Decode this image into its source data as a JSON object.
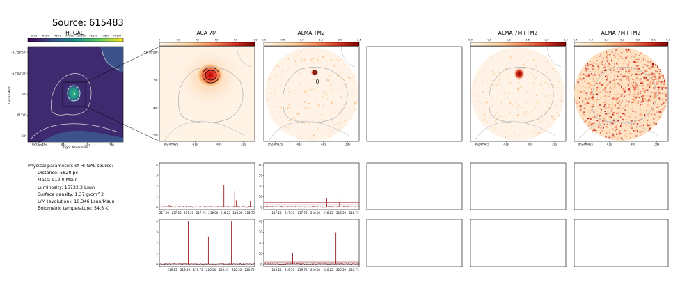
{
  "figure": {
    "title": "Source: 615483"
  },
  "colors": {
    "higal_low": "#440154",
    "higal_mid": "#31688e",
    "higal_high": "#35b779",
    "higal_top": "#fde725",
    "heat_low": "#fff5eb",
    "heat_mid": "#fd8d3c",
    "heat_high": "#7f0000",
    "spectrum_line": "#8b0000",
    "spectrum_base": "#000000",
    "contour": "#a6a6a6"
  },
  "params": {
    "heading": "Physical parameters of Hi-GAL source:",
    "lines": [
      "Distance: 5828 pc",
      "Mass: 912.0 Msun",
      "Luminosity: 16732.3 Lsun",
      "Surface density: 1.37 g/cm^2",
      "L/M (evolution): 18.346 Lsun/Msun",
      "Bolometric temperature: 54.5 K"
    ]
  },
  "chart_data": [
    {
      "type": "heatmap",
      "id": "higal",
      "title": "Hi-GAL",
      "xlabel": "Right Ascension",
      "ylabel": "Declination",
      "colorbar_ticks": [
        "2500",
        "5000",
        "7500",
        "10000",
        "12500",
        "15000",
        "17500",
        "20000"
      ],
      "x_ticks": [
        "9h24m48s",
        "44s",
        "40s",
        "36s"
      ],
      "y_ticks": [
        "-51°59'30\"",
        "-52°00'00\"",
        "30\"",
        "01'00\"",
        "30\""
      ],
      "colormap": "viridis"
    },
    {
      "type": "heatmap",
      "id": "aca7m",
      "title": "ACA 7M",
      "colorbar_ticks": [
        "0",
        "20",
        "40",
        "60",
        "80",
        "100"
      ],
      "x_ticks": [
        "9h24m42s",
        "41s",
        "40s",
        "39s"
      ],
      "y_ticks": [
        "-52°00'20\"",
        "30\"",
        "40\"",
        "50\""
      ],
      "colormap": "OrRd"
    },
    {
      "type": "heatmap",
      "id": "almatm2",
      "title": "ALMA TM2",
      "colorbar_ticks": [
        "0.0",
        "0.5",
        "1.0",
        "1.5",
        "2.0",
        "2.5"
      ],
      "x_ticks": [
        "9h24m42s",
        "41s",
        "40s",
        "39s"
      ],
      "colormap": "OrRd"
    },
    {
      "type": "heatmap",
      "id": "alma7mtm2",
      "title": "ALMA 7M+TM2",
      "colorbar_ticks": [
        "0.0",
        "0.5",
        "1.0",
        "1.5",
        "2.0",
        "2.5"
      ],
      "x_ticks": [
        "9h24m42s",
        "41s",
        "40s",
        "39s"
      ],
      "colormap": "OrRd"
    },
    {
      "type": "heatmap",
      "id": "alma7mtm2b",
      "title": "ALMA 7M+TM2",
      "colorbar_ticks": [
        "−0.4",
        "−0.3",
        "−0.3",
        "−0.2",
        "−0.2",
        "−0.1",
        "0.0"
      ],
      "x_ticks": [
        "9h24m42s",
        "41s",
        "40s",
        "39s"
      ],
      "colormap": "OrRd"
    },
    {
      "type": "line",
      "id": "spec_aca_low",
      "x_ticks": [
        "217.00",
        "217.25",
        "217.50",
        "217.75",
        "218.00",
        "218.25",
        "218.50",
        "218.75"
      ],
      "y_ticks": [
        "0",
        "1",
        "2",
        "3",
        "4"
      ],
      "xlim": [
        216.9,
        218.85
      ],
      "ylim": [
        -0.2,
        4.2
      ],
      "baseline": 0.05,
      "peaks": [
        {
          "x": 217.1,
          "y": 0.2
        },
        {
          "x": 218.22,
          "y": 2.1
        },
        {
          "x": 218.44,
          "y": 1.5
        },
        {
          "x": 218.47,
          "y": 0.7
        },
        {
          "x": 218.76,
          "y": 0.6
        }
      ]
    },
    {
      "type": "line",
      "id": "spec_tm2_low",
      "x_ticks": [
        "217.25",
        "217.50",
        "217.75",
        "218.00",
        "218.25",
        "218.50",
        "218.75"
      ],
      "y_ticks": [
        "0",
        "10",
        "20",
        "30",
        "40"
      ],
      "xlim": [
        217.0,
        218.85
      ],
      "ylim": [
        -2,
        42
      ],
      "baseline": 0.5,
      "band": [
        2.5,
        5
      ],
      "peaks": [
        {
          "x": 218.22,
          "y": 9
        },
        {
          "x": 218.44,
          "y": 11
        },
        {
          "x": 218.47,
          "y": 5
        }
      ]
    },
    {
      "type": "line",
      "id": "spec_aca_high",
      "x_ticks": [
        "219.25",
        "219.50",
        "219.75",
        "220.00",
        "220.25",
        "220.50",
        "220.75"
      ],
      "y_ticks": [
        "0",
        "1",
        "2",
        "3",
        "4"
      ],
      "xlim": [
        219.0,
        220.85
      ],
      "ylim": [
        -0.2,
        4.2
      ],
      "baseline": 0.05,
      "peaks": [
        {
          "x": 219.56,
          "y": 4.0
        },
        {
          "x": 219.95,
          "y": 2.6
        },
        {
          "x": 220.4,
          "y": 4.0
        }
      ]
    },
    {
      "type": "line",
      "id": "spec_tm2_high",
      "x_ticks": [
        "219.25",
        "219.50",
        "219.75",
        "220.00",
        "220.25",
        "220.50",
        "220.75"
      ],
      "y_ticks": [
        "0",
        "10",
        "20",
        "30",
        "40"
      ],
      "xlim": [
        219.0,
        220.85
      ],
      "ylim": [
        -2,
        42
      ],
      "baseline": 0.5,
      "band": [
        2.5,
        6
      ],
      "peaks": [
        {
          "x": 219.56,
          "y": 11
        },
        {
          "x": 219.95,
          "y": 9
        },
        {
          "x": 220.4,
          "y": 30
        }
      ]
    }
  ]
}
